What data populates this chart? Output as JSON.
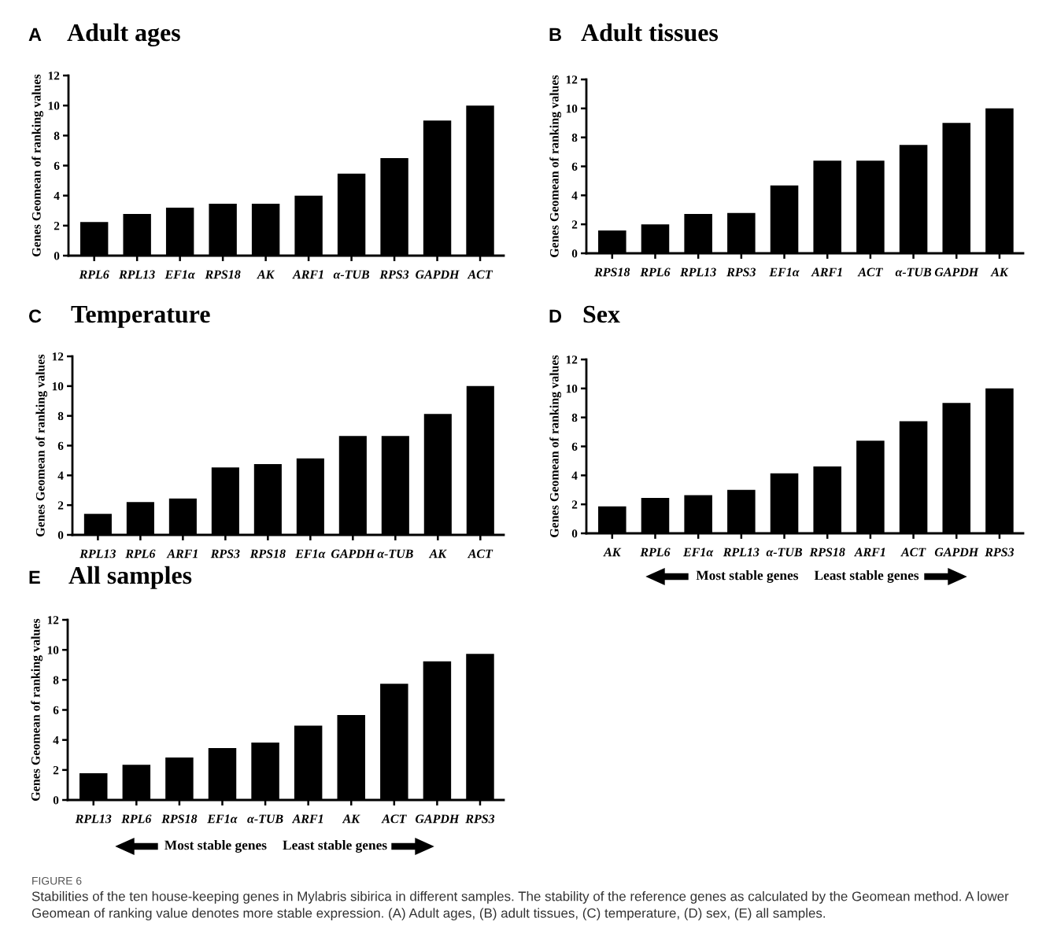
{
  "chart_data": [
    {
      "type": "bar",
      "title": "Adult ages",
      "ylabel": "Genes Geomean of ranking values",
      "annotations": [
        "A"
      ],
      "categories": [
        "RPL6",
        "RPL13",
        "EF1α",
        "RPS18",
        "AK",
        "ARF1",
        "α-TUB",
        "RPS3",
        "GAPDH",
        "ACT"
      ],
      "values": [
        2.24,
        2.78,
        3.2,
        3.46,
        3.46,
        4.0,
        5.46,
        6.5,
        9.0,
        10.0
      ],
      "color": "#000000",
      "ylim": [
        0,
        12
      ],
      "yticks": [
        0,
        2,
        4,
        6,
        8,
        10,
        12
      ],
      "grid": false,
      "legend": false
    },
    {
      "type": "bar",
      "title": "Adult tissues",
      "ylabel": "Genes Geomean of ranking values",
      "annotations": [
        "B"
      ],
      "categories": [
        "RPS18",
        "RPL6",
        "RPL13",
        "RPS3",
        "EF1α",
        "ARF1",
        "ACT",
        "α-TUB",
        "GAPDH",
        "AK"
      ],
      "values": [
        1.57,
        2.0,
        2.71,
        2.78,
        4.68,
        6.4,
        6.4,
        7.48,
        9.0,
        10.0
      ],
      "color": "#000000",
      "ylim": [
        0,
        12
      ],
      "yticks": [
        0,
        2,
        4,
        6,
        8,
        10,
        12
      ],
      "grid": false,
      "legend": false
    },
    {
      "type": "bar",
      "title": "Temperature",
      "ylabel": "Genes Geomean of ranking values",
      "annotations": [
        "C"
      ],
      "categories": [
        "RPL13",
        "RPL6",
        "ARF1",
        "RPS3",
        "RPS18",
        "EF1α",
        "GAPDH",
        "α-TUB",
        "AK",
        "ACT"
      ],
      "values": [
        1.41,
        2.21,
        2.45,
        4.53,
        4.76,
        5.14,
        6.65,
        6.65,
        8.13,
        10.0
      ],
      "color": "#000000",
      "ylim": [
        0,
        12
      ],
      "yticks": [
        0,
        2,
        4,
        6,
        8,
        10,
        12
      ],
      "grid": false,
      "legend": false
    },
    {
      "type": "bar",
      "title": "Sex",
      "ylabel": "Genes Geomean of ranking values",
      "annotations": [
        "D",
        "Most stable genes",
        "Least stable genes"
      ],
      "categories": [
        "AK",
        "RPL6",
        "EF1α",
        "RPL13",
        "α-TUB",
        "RPS18",
        "ARF1",
        "ACT",
        "GAPDH",
        "RPS3"
      ],
      "values": [
        1.86,
        2.45,
        2.63,
        3.0,
        4.14,
        4.61,
        6.4,
        7.74,
        9.0,
        10.0
      ],
      "color": "#000000",
      "ylim": [
        0,
        12
      ],
      "yticks": [
        0,
        2,
        4,
        6,
        8,
        10,
        12
      ],
      "grid": false,
      "legend": false
    },
    {
      "type": "bar",
      "title": "All samples",
      "ylabel": "Genes Geomean of ranking values",
      "annotations": [
        "E",
        "Most stable genes",
        "Least stable genes",
        "FIGURE 6",
        "Stabilities of the ten house-keeping genes in Mylabris sibirica in different samples. The stability of the reference genes as calculated by the Geomean method. A lower Geomean of ranking value denotes more stable expression. (A) Adult ages, (B) adult tissues, (C) temperature, (D) sex, (E) all samples."
      ],
      "categories": [
        "RPL13",
        "RPL6",
        "RPS18",
        "EF1α",
        "α-TUB",
        "ARF1",
        "AK",
        "ACT",
        "GAPDH",
        "RPS3"
      ],
      "values": [
        1.78,
        2.34,
        2.83,
        3.46,
        3.83,
        4.95,
        5.66,
        7.74,
        9.24,
        9.74
      ],
      "color": "#000000",
      "ylim": [
        0,
        12
      ],
      "yticks": [
        0,
        2,
        4,
        6,
        8,
        10,
        12
      ],
      "grid": false,
      "legend": false
    }
  ]
}
